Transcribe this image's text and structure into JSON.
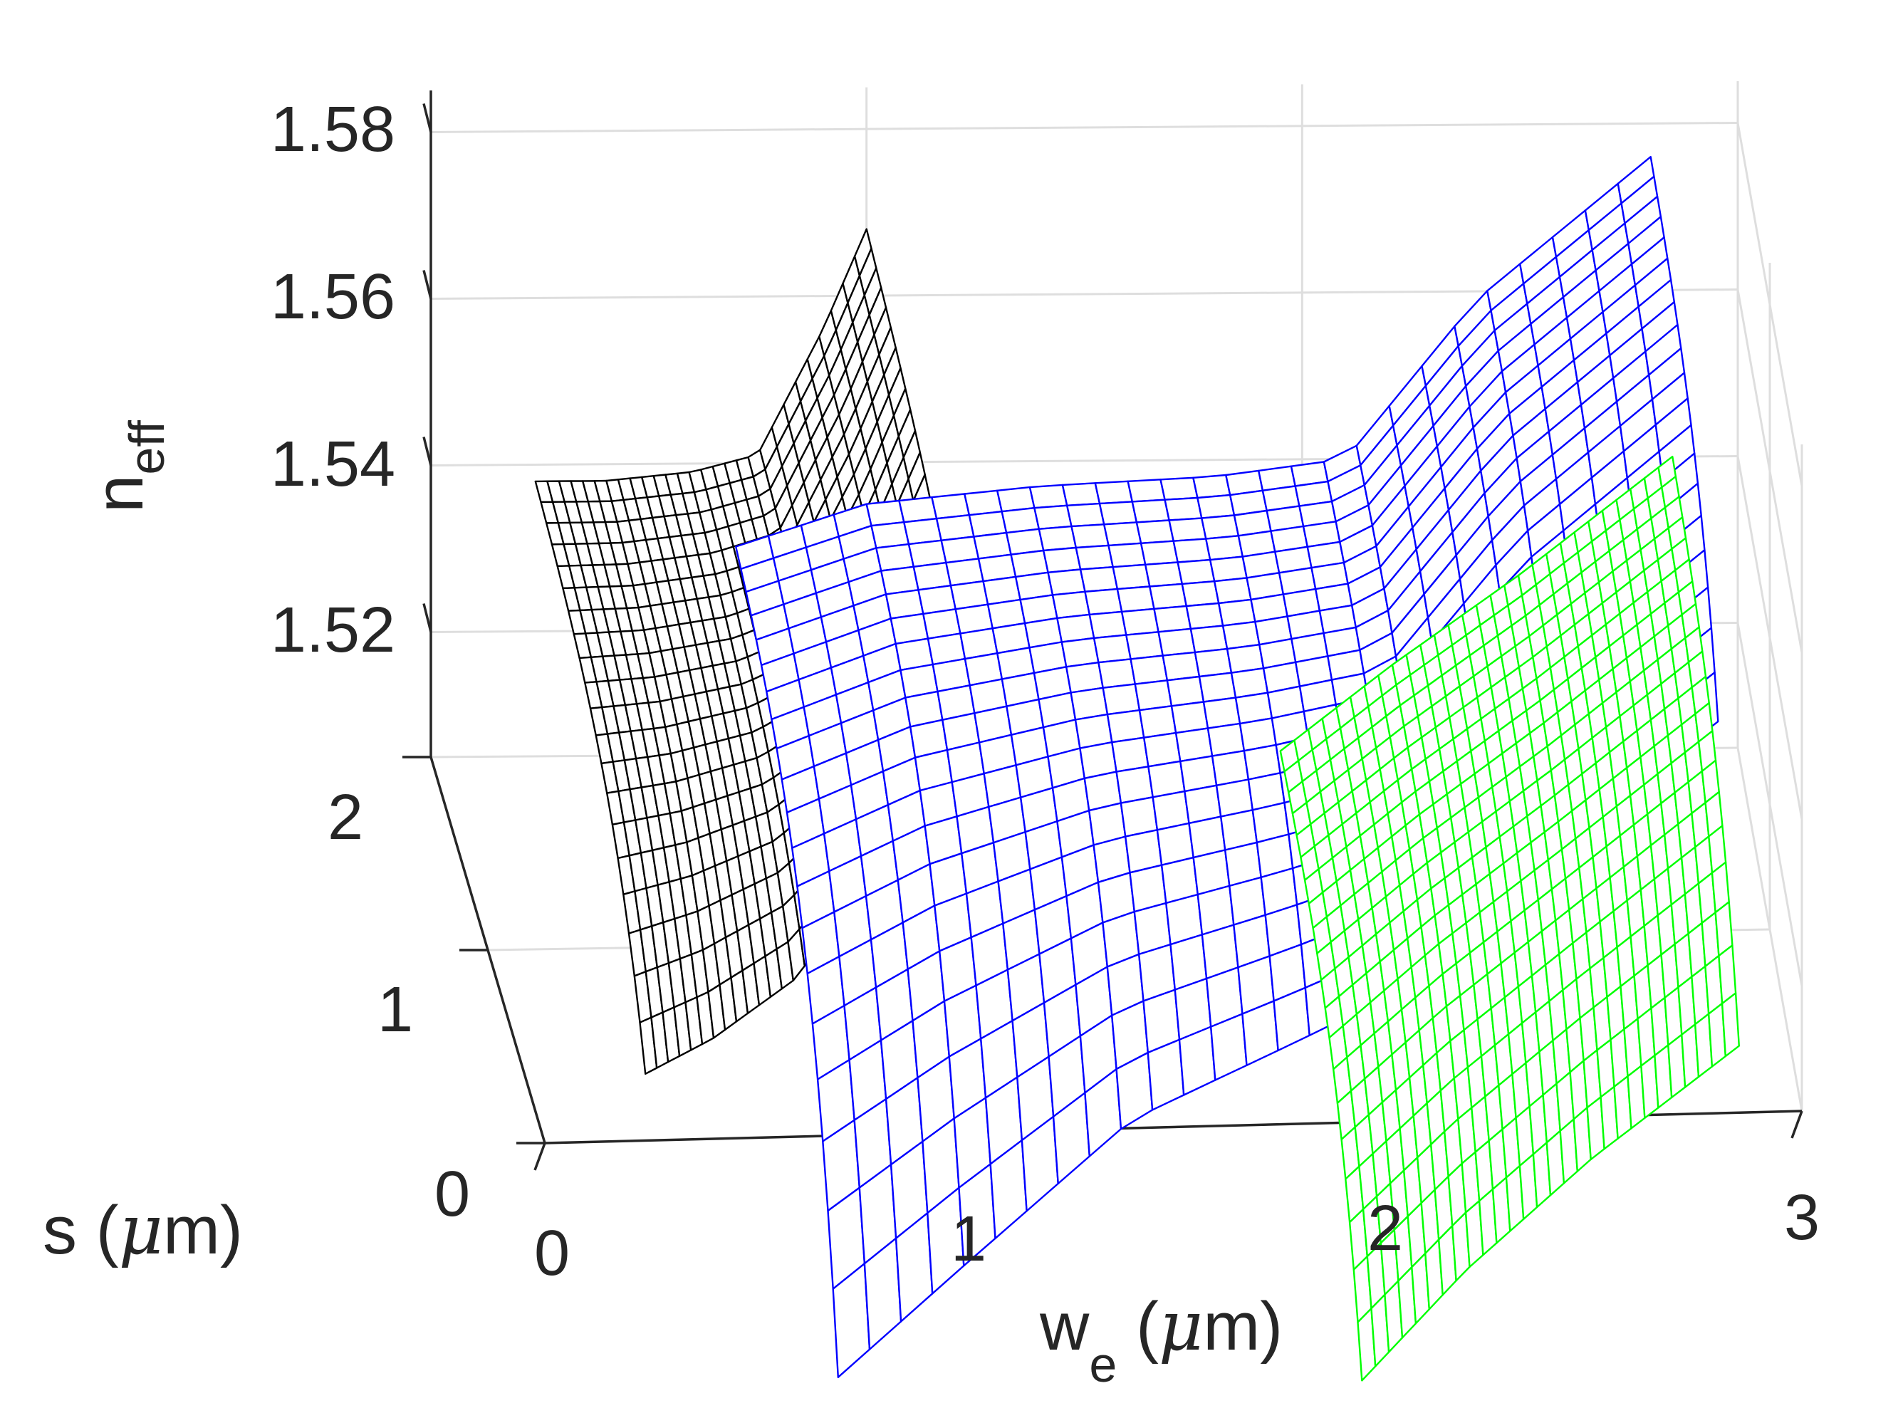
{
  "chart_data": {
    "type": "surface",
    "view": "3d-mesh",
    "xlabel": {
      "base": "w",
      "sub": "e",
      "unit_prefix": " (",
      "mu": "μ",
      "unit_suffix": "m)"
    },
    "ylabel": {
      "text_prefix": "s (",
      "mu": "μ",
      "text_suffix": "m)"
    },
    "zlabel": {
      "base": "n",
      "sub": "eff"
    },
    "xlim": [
      0,
      3
    ],
    "ylim": [
      0,
      2
    ],
    "zlim": [
      1.505,
      1.585
    ],
    "x_ticks": [
      "0",
      "1",
      "2",
      "3"
    ],
    "y_ticks": [
      "0",
      "1",
      "2"
    ],
    "z_ticks": [
      "1.52",
      "1.54",
      "1.56",
      "1.58"
    ],
    "grid": true,
    "series": [
      {
        "color": "#000000",
        "x_range": [
          0.24,
          1.0
        ],
        "y_range": [
          0.0,
          2.0
        ],
        "samples": [
          {
            "x": 0.24,
            "n_low_s": 1.513,
            "n_high_s": 1.538
          },
          {
            "x": 0.4,
            "n_low_s": 1.517,
            "n_high_s": 1.538
          },
          {
            "x": 0.6,
            "n_low_s": 1.524,
            "n_high_s": 1.539
          },
          {
            "x": 0.75,
            "n_low_s": 1.535,
            "n_high_s": 1.541
          },
          {
            "x": 0.9,
            "n_low_s": 1.549,
            "n_high_s": 1.556
          },
          {
            "x": 1.0,
            "n_low_s": 1.559,
            "n_high_s": 1.568
          }
        ]
      },
      {
        "color": "#0000ff",
        "x_range": [
          0.7,
          2.8
        ],
        "y_range": [
          0.0,
          2.0
        ],
        "samples": [
          {
            "x": 0.7,
            "n_low_s": 1.476,
            "n_high_s": 1.53
          },
          {
            "x": 1.0,
            "n_low_s": 1.489,
            "n_high_s": 1.535
          },
          {
            "x": 1.4,
            "n_low_s": 1.506,
            "n_high_s": 1.537
          },
          {
            "x": 1.8,
            "n_low_s": 1.515,
            "n_high_s": 1.538
          },
          {
            "x": 2.1,
            "n_low_s": 1.522,
            "n_high_s": 1.54
          },
          {
            "x": 2.4,
            "n_low_s": 1.537,
            "n_high_s": 1.559
          },
          {
            "x": 2.8,
            "n_low_s": 1.552,
            "n_high_s": 1.576
          }
        ]
      },
      {
        "color": "#00ff00",
        "x_range": [
          1.95,
          2.85
        ],
        "y_range": [
          0.0,
          2.0
        ],
        "samples": [
          {
            "x": 1.95,
            "n_low_s": 1.474,
            "n_high_s": 1.505
          },
          {
            "x": 2.2,
            "n_low_s": 1.487,
            "n_high_s": 1.515
          },
          {
            "x": 2.5,
            "n_low_s": 1.5,
            "n_high_s": 1.526
          },
          {
            "x": 2.85,
            "n_low_s": 1.513,
            "n_high_s": 1.54
          }
        ]
      }
    ]
  }
}
